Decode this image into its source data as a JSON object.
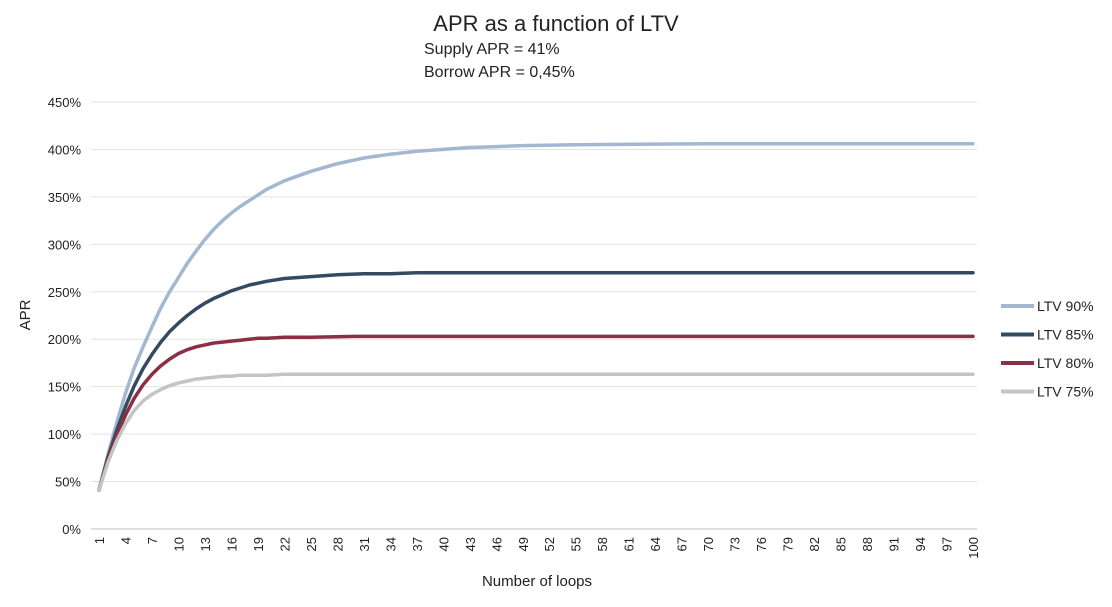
{
  "chart_data": {
    "type": "line",
    "title": "APR as a function of LTV",
    "subtitle_lines": [
      "Supply APR = 41%",
      "Borrow APR = 0,45%"
    ],
    "xlabel": "Number of loops",
    "ylabel": "APR",
    "x_ticks": [
      "1",
      "4",
      "7",
      "10",
      "13",
      "16",
      "19",
      "22",
      "25",
      "28",
      "31",
      "34",
      "37",
      "40",
      "43",
      "46",
      "49",
      "52",
      "55",
      "58",
      "61",
      "64",
      "67",
      "70",
      "73",
      "76",
      "79",
      "82",
      "85",
      "88",
      "91",
      "94",
      "97",
      "100"
    ],
    "xlim": [
      1,
      100
    ],
    "y_ticks": [
      "0%",
      "50%",
      "100%",
      "150%",
      "200%",
      "250%",
      "300%",
      "350%",
      "400%",
      "450%"
    ],
    "ylim": [
      0,
      450
    ],
    "grid": "horizontal",
    "legend_position": "right",
    "series": [
      {
        "name": "LTV 90%",
        "color": "#a3b7d1",
        "points": [
          [
            1,
            41
          ],
          [
            2,
            78
          ],
          [
            3,
            112
          ],
          [
            4,
            143
          ],
          [
            5,
            170
          ],
          [
            6,
            192
          ],
          [
            7,
            213
          ],
          [
            8,
            233
          ],
          [
            9,
            250
          ],
          [
            10,
            265
          ],
          [
            11,
            280
          ],
          [
            12,
            293
          ],
          [
            13,
            305
          ],
          [
            14,
            316
          ],
          [
            15,
            325
          ],
          [
            16,
            333
          ],
          [
            17,
            340
          ],
          [
            18,
            346
          ],
          [
            19,
            352
          ],
          [
            20,
            358
          ],
          [
            22,
            367
          ],
          [
            25,
            377
          ],
          [
            28,
            385
          ],
          [
            31,
            391
          ],
          [
            34,
            395
          ],
          [
            37,
            398
          ],
          [
            40,
            400
          ],
          [
            43,
            402
          ],
          [
            46,
            403
          ],
          [
            49,
            404
          ],
          [
            55,
            405
          ],
          [
            70,
            406
          ],
          [
            100,
            406
          ]
        ]
      },
      {
        "name": "LTV 85%",
        "color": "#344a63",
        "points": [
          [
            1,
            41
          ],
          [
            2,
            75
          ],
          [
            3,
            104
          ],
          [
            4,
            129
          ],
          [
            5,
            151
          ],
          [
            6,
            169
          ],
          [
            7,
            184
          ],
          [
            8,
            197
          ],
          [
            9,
            208
          ],
          [
            10,
            217
          ],
          [
            11,
            225
          ],
          [
            12,
            232
          ],
          [
            13,
            238
          ],
          [
            14,
            243
          ],
          [
            15,
            247
          ],
          [
            16,
            251
          ],
          [
            17,
            254
          ],
          [
            18,
            257
          ],
          [
            19,
            259
          ],
          [
            20,
            261
          ],
          [
            22,
            264
          ],
          [
            25,
            266
          ],
          [
            28,
            268
          ],
          [
            31,
            269
          ],
          [
            34,
            269
          ],
          [
            37,
            270
          ],
          [
            40,
            270
          ],
          [
            100,
            270
          ]
        ]
      },
      {
        "name": "LTV 80%",
        "color": "#8c2f45",
        "points": [
          [
            1,
            41
          ],
          [
            2,
            73
          ],
          [
            3,
            99
          ],
          [
            4,
            120
          ],
          [
            5,
            138
          ],
          [
            6,
            152
          ],
          [
            7,
            163
          ],
          [
            8,
            172
          ],
          [
            9,
            179
          ],
          [
            10,
            185
          ],
          [
            11,
            189
          ],
          [
            12,
            192
          ],
          [
            13,
            194
          ],
          [
            14,
            196
          ],
          [
            15,
            197
          ],
          [
            16,
            198
          ],
          [
            17,
            199
          ],
          [
            18,
            200
          ],
          [
            19,
            201
          ],
          [
            20,
            201
          ],
          [
            22,
            202
          ],
          [
            25,
            202
          ],
          [
            30,
            203
          ],
          [
            100,
            203
          ]
        ]
      },
      {
        "name": "LTV 75%",
        "color": "#c4c4c4",
        "points": [
          [
            1,
            41
          ],
          [
            2,
            70
          ],
          [
            3,
            93
          ],
          [
            4,
            111
          ],
          [
            5,
            125
          ],
          [
            6,
            135
          ],
          [
            7,
            142
          ],
          [
            8,
            147
          ],
          [
            9,
            151
          ],
          [
            10,
            154
          ],
          [
            11,
            156
          ],
          [
            12,
            158
          ],
          [
            13,
            159
          ],
          [
            14,
            160
          ],
          [
            15,
            161
          ],
          [
            16,
            161
          ],
          [
            17,
            162
          ],
          [
            18,
            162
          ],
          [
            20,
            162
          ],
          [
            22,
            163
          ],
          [
            100,
            163
          ]
        ]
      }
    ]
  }
}
